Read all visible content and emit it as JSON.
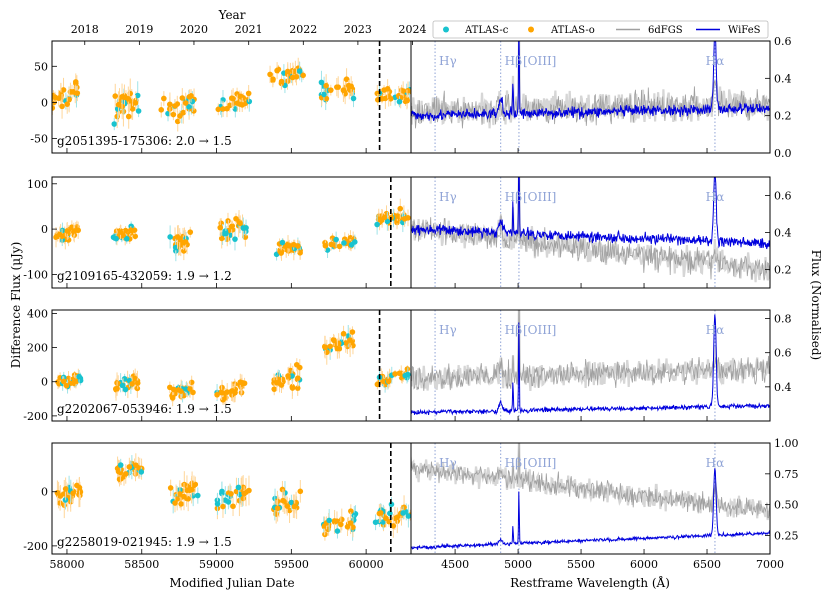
{
  "figure": {
    "top_axis_title": "Year",
    "years": [
      "2018",
      "2019",
      "2020",
      "2021",
      "2022",
      "2023",
      "2024"
    ],
    "year_mjd": [
      58119,
      58484,
      58849,
      59215,
      59580,
      59945,
      60310
    ],
    "x_left_label": "Modified Julian Date",
    "x_right_label": "Restframe Wavelength (Å)",
    "y_left_label": "Difference Flux (μJy)",
    "y_right_label": "Flux (Normalised)",
    "lc_xlim": [
      57900,
      60300
    ],
    "lc_xticks": [
      "58000",
      "58500",
      "59000",
      "59500",
      "60000"
    ],
    "sp_xlim": [
      4150,
      7000
    ],
    "sp_xticks": [
      "4500",
      "5000",
      "5500",
      "6000",
      "6500",
      "7000"
    ],
    "lines": [
      {
        "name": "Hγ",
        "wave": 4341
      },
      {
        "name": "Hβ",
        "wave": 4862
      },
      {
        "name": "[OIII]",
        "wave": 5007
      },
      {
        "name": "Hα",
        "wave": 6563
      }
    ],
    "colors": {
      "atlas_c": "#19c3cf",
      "atlas_o": "#ffa500",
      "sixdf": "#a0a0a0",
      "wifes": "#0000dd"
    }
  },
  "legend": [
    {
      "label": "ATLAS-c",
      "kind": "dot",
      "color": "#19c3cf"
    },
    {
      "label": "ATLAS-o",
      "kind": "dot",
      "color": "#ffa500"
    },
    {
      "label": "6dFGS",
      "kind": "line",
      "color": "#a0a0a0"
    },
    {
      "label": "WiFeS",
      "kind": "line",
      "color": "#0000dd"
    }
  ],
  "chart_data": [
    {
      "type": "scatter",
      "title": "g2051395-175306: 2.0 → 1.5",
      "xlabel": "Modified Julian Date",
      "ylabel": "Difference Flux (μJy)",
      "xlim": [
        57900,
        60300
      ],
      "ylim": [
        -70,
        85
      ],
      "yticks": [
        -50,
        0,
        50
      ],
      "event_mjd": 60090,
      "seasons": [
        {
          "start": 57900,
          "end": 58080,
          "mean": 8,
          "scatter": 12
        },
        {
          "start": 58310,
          "end": 58480,
          "mean": -5,
          "scatter": 14
        },
        {
          "start": 58630,
          "end": 58860,
          "mean": -8,
          "scatter": 12
        },
        {
          "start": 59000,
          "end": 59220,
          "mean": 0,
          "scatter": 10
        },
        {
          "start": 59350,
          "end": 59580,
          "mean": 38,
          "scatter": 10
        },
        {
          "start": 59700,
          "end": 59920,
          "mean": 18,
          "scatter": 12
        },
        {
          "start": 60070,
          "end": 60300,
          "mean": 10,
          "scatter": 10
        }
      ],
      "spectra": {
        "ylim": [
          0.0,
          0.6
        ],
        "yticks": [
          "0.0",
          "0.2",
          "0.4",
          "0.6"
        ],
        "sixdf": {
          "continuum": [
            0.22,
            0.26
          ],
          "noise": 0.07,
          "Hb": 0.04,
          "OIII": 0.45,
          "Ha": 0.14
        },
        "wifes": {
          "continuum": [
            0.2,
            0.24
          ],
          "noise": 0.025,
          "Hb": 0.08,
          "OIII": 0.55,
          "Ha": 0.42
        }
      }
    },
    {
      "type": "scatter",
      "title": "g2109165-432059: 1.9 → 1.2",
      "xlabel": "Modified Julian Date",
      "ylabel": "Difference Flux (μJy)",
      "xlim": [
        57900,
        60300
      ],
      "ylim": [
        -130,
        115
      ],
      "yticks": [
        -100,
        0,
        100
      ],
      "event_mjd": 60165,
      "seasons": [
        {
          "start": 57920,
          "end": 58080,
          "mean": -8,
          "scatter": 15
        },
        {
          "start": 58300,
          "end": 58460,
          "mean": -12,
          "scatter": 12
        },
        {
          "start": 58680,
          "end": 58840,
          "mean": -30,
          "scatter": 18
        },
        {
          "start": 59020,
          "end": 59210,
          "mean": 0,
          "scatter": 18
        },
        {
          "start": 59390,
          "end": 59560,
          "mean": -40,
          "scatter": 15
        },
        {
          "start": 59720,
          "end": 59940,
          "mean": -30,
          "scatter": 12
        },
        {
          "start": 60070,
          "end": 60300,
          "mean": 25,
          "scatter": 15
        }
      ],
      "spectra": {
        "ylim": [
          0.1,
          0.7
        ],
        "yticks": [
          "0.2",
          "0.4",
          "0.6"
        ],
        "sixdf": {
          "continuum": [
            0.42,
            0.2
          ],
          "noise": 0.06,
          "Hb": 0.07,
          "OIII": 0.45,
          "Ha": 0.08
        },
        "wifes": {
          "continuum": [
            0.42,
            0.34
          ],
          "noise": 0.025,
          "Hb": 0.08,
          "OIII": 0.5,
          "Ha": 0.38
        }
      }
    },
    {
      "type": "scatter",
      "title": "g2202067-053946: 1.9 → 1.5",
      "xlabel": "Modified Julian Date",
      "ylabel": "Difference Flux (μJy)",
      "xlim": [
        57900,
        60300
      ],
      "ylim": [
        -230,
        420
      ],
      "yticks": [
        -200,
        0,
        200,
        400
      ],
      "event_mjd": 60090,
      "seasons": [
        {
          "start": 57940,
          "end": 58100,
          "mean": 10,
          "scatter": 30
        },
        {
          "start": 58320,
          "end": 58480,
          "mean": -10,
          "scatter": 45
        },
        {
          "start": 58680,
          "end": 58850,
          "mean": -60,
          "scatter": 35
        },
        {
          "start": 58990,
          "end": 59200,
          "mean": -50,
          "scatter": 40
        },
        {
          "start": 59380,
          "end": 59560,
          "mean": 10,
          "scatter": 50
        },
        {
          "start": 59700,
          "end": 59920,
          "mean": 220,
          "scatter": 50
        },
        {
          "start": 60070,
          "end": 60300,
          "mean": 20,
          "scatter": 35
        }
      ],
      "spectra": {
        "ylim": [
          0.2,
          0.85
        ],
        "yticks": [
          "0.4",
          "0.6",
          "0.8"
        ],
        "sixdf": {
          "continuum": [
            0.45,
            0.5
          ],
          "noise": 0.06,
          "Hb": 0.06,
          "OIII": 0.5,
          "Ha": 0.1
        },
        "wifes": {
          "continuum": [
            0.25,
            0.29
          ],
          "noise": 0.012,
          "Hb": 0.05,
          "OIII": 0.55,
          "Ha": 0.55
        }
      }
    },
    {
      "type": "scatter",
      "title": "g2258019-021945: 1.9 → 1.5",
      "xlabel": "Modified Julian Date",
      "ylabel": "Difference Flux (μJy)",
      "xlim": [
        57900,
        60300
      ],
      "ylim": [
        -230,
        180
      ],
      "yticks": [
        -200,
        0
      ],
      "event_mjd": 60165,
      "seasons": [
        {
          "start": 57930,
          "end": 58100,
          "mean": -10,
          "scatter": 35
        },
        {
          "start": 58320,
          "end": 58500,
          "mean": 80,
          "scatter": 30
        },
        {
          "start": 58680,
          "end": 58880,
          "mean": -10,
          "scatter": 35
        },
        {
          "start": 59000,
          "end": 59220,
          "mean": -20,
          "scatter": 40
        },
        {
          "start": 59380,
          "end": 59570,
          "mean": -40,
          "scatter": 35
        },
        {
          "start": 59700,
          "end": 59930,
          "mean": -120,
          "scatter": 30
        },
        {
          "start": 60060,
          "end": 60300,
          "mean": -90,
          "scatter": 30
        }
      ],
      "spectra": {
        "ylim": [
          0.1,
          1.0
        ],
        "yticks": [
          "0.25",
          "0.50",
          "0.75",
          "1.00"
        ],
        "sixdf": {
          "continuum": [
            0.8,
            0.45
          ],
          "noise": 0.07,
          "Hb": 0.05,
          "OIII": 0.3,
          "Ha": 0.15
        },
        "wifes": {
          "continuum": [
            0.15,
            0.27
          ],
          "noise": 0.012,
          "Hb": 0.04,
          "OIII": 0.45,
          "Ha": 0.55
        }
      }
    }
  ]
}
